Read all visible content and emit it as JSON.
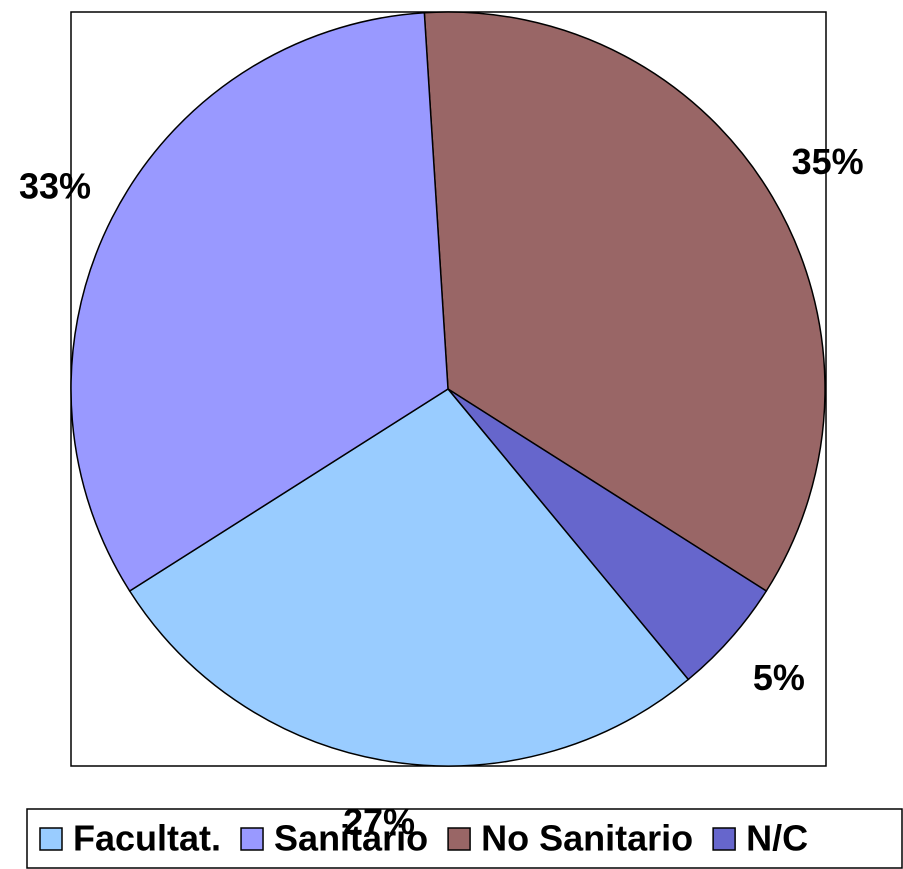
{
  "chart_data": {
    "type": "pie",
    "categories": [
      "Facultat.",
      "Sanitario",
      "No Sanitario",
      "N/C"
    ],
    "values": [
      27,
      33,
      35,
      5
    ],
    "value_labels": [
      "27%",
      "33%",
      "35%",
      "5%"
    ],
    "colors": [
      "#99ccff",
      "#9999ff",
      "#996666",
      "#6666cc"
    ],
    "legend": "bottom"
  }
}
